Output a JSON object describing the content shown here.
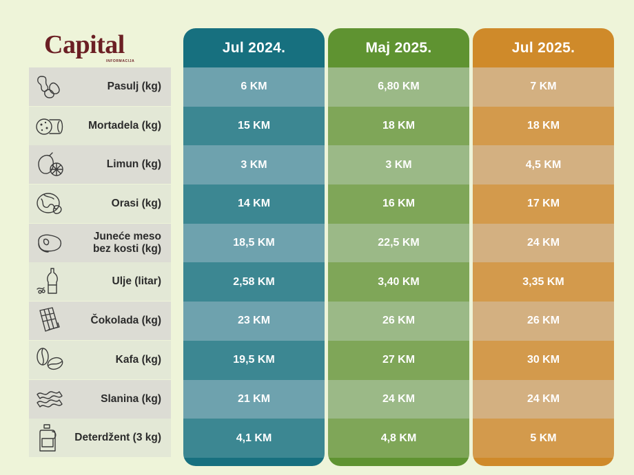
{
  "brand": {
    "small": "INFORMACIJA",
    "name": "Capital"
  },
  "rows": [
    {
      "label": "Pasulj (kg)",
      "icon": "beans-icon"
    },
    {
      "label": "Mortadela (kg)",
      "icon": "mortadella-icon"
    },
    {
      "label": "Limun (kg)",
      "icon": "lemon-icon"
    },
    {
      "label": "Orasi (kg)",
      "icon": "walnut-icon"
    },
    {
      "label": "Juneće meso\nbez kosti (kg)",
      "icon": "steak-icon"
    },
    {
      "label": "Ulje (litar)",
      "icon": "oil-bottle-icon"
    },
    {
      "label": "Čokolada (kg)",
      "icon": "chocolate-icon"
    },
    {
      "label": "Kafa (kg)",
      "icon": "coffee-bean-icon"
    },
    {
      "label": "Slanina (kg)",
      "icon": "bacon-icon"
    },
    {
      "label": "Deterdžent (3 kg)",
      "icon": "detergent-icon"
    }
  ],
  "columns": [
    {
      "title": "Jul 2024.",
      "colors": {
        "header": "#17707f",
        "light": "#6ea2ae",
        "dark": "#3c8792",
        "footer": "#17707f"
      },
      "values": [
        "6 KM",
        "15 KM",
        "3 KM",
        "14 KM",
        "18,5 KM",
        "2,58 KM",
        "23 KM",
        "19,5 KM",
        "21 KM",
        "4,1 KM"
      ]
    },
    {
      "title": "Maj 2025.",
      "colors": {
        "header": "#5f9331",
        "light": "#9bb987",
        "dark": "#7fa658",
        "footer": "#5f9331"
      },
      "values": [
        "6,80 KM",
        "18 KM",
        "3 KM",
        "16 KM",
        "22,5 KM",
        "3,40 KM",
        "26 KM",
        "27 KM",
        "24 KM",
        "4,8 KM"
      ]
    },
    {
      "title": "Jul 2025.",
      "colors": {
        "header": "#cf8a2a",
        "light": "#d3b081",
        "dark": "#d39a4c",
        "footer": "#cf8a2a"
      },
      "values": [
        "7 KM",
        "18 KM",
        "4,5 KM",
        "17 KM",
        "24 KM",
        "3,35 KM",
        "26 KM",
        "30 KM",
        "24 KM",
        "5 KM"
      ]
    }
  ]
}
